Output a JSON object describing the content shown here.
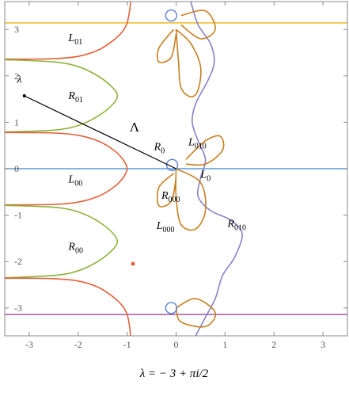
{
  "chart_data": {
    "type": "line",
    "xlim": [
      -3.5,
      3.5
    ],
    "ylim": [
      -3.6,
      3.6
    ],
    "xticks": [
      -3,
      -2,
      -1,
      0,
      1,
      2,
      3
    ],
    "yticks": [
      -3,
      -2,
      -1,
      0,
      1,
      2,
      3
    ],
    "caption": "λ = − 3 + πi/2",
    "series": [
      {
        "color": "#e8b820",
        "x": [
          -3.5,
          3.5
        ],
        "y": [
          3.14159,
          3.14159
        ]
      },
      {
        "color": "#5b9bd5",
        "x": [
          -3.5,
          3.5
        ],
        "y": [
          0,
          0
        ]
      },
      {
        "color": "#9b59a6",
        "x": [
          -3.5,
          3.5
        ],
        "y": [
          -3.14159,
          -3.14159
        ]
      },
      {
        "color": "#e4603a",
        "x": [
          -3.5,
          -3,
          -2.5,
          -2,
          -1.6,
          -1.3,
          -1.1,
          -1.0,
          -0.95,
          -0.93
        ],
        "y": [
          2.36,
          2.36,
          2.37,
          2.42,
          2.55,
          2.75,
          2.95,
          3.14,
          3.4,
          3.6
        ]
      },
      {
        "color": "#8fb23a",
        "x": [
          -3.5,
          -2.5,
          -2,
          -1.6,
          -1.3,
          -1.2,
          -1.3,
          -1.6,
          -2,
          -2.5,
          -3.5
        ],
        "y": [
          2.35,
          2.3,
          2.2,
          2.0,
          1.75,
          1.57,
          1.38,
          1.13,
          0.93,
          0.83,
          0.79
        ]
      },
      {
        "color": "#e4603a",
        "x": [
          -3.5,
          -2.5,
          -2,
          -1.6,
          -1.3,
          -1.1,
          -1.0,
          -1.1,
          -1.3,
          -1.6,
          -2,
          -2.5,
          -3.5
        ],
        "y": [
          0.78,
          0.77,
          0.72,
          0.6,
          0.42,
          0.22,
          0,
          -0.22,
          -0.42,
          -0.6,
          -0.72,
          -0.77,
          -0.78
        ]
      },
      {
        "color": "#8fb23a",
        "x": [
          -3.5,
          -2.5,
          -2,
          -1.6,
          -1.3,
          -1.2,
          -1.3,
          -1.6,
          -2,
          -2.5,
          -3.5
        ],
        "y": [
          -0.79,
          -0.83,
          -0.93,
          -1.13,
          -1.38,
          -1.57,
          -1.75,
          -2.0,
          -2.2,
          -2.3,
          -2.35
        ]
      },
      {
        "color": "#e4603a",
        "x": [
          -0.93,
          -0.95,
          -1.0,
          -1.1,
          -1.3,
          -1.6,
          -2,
          -2.5,
          -3,
          -3.5
        ],
        "y": [
          -3.6,
          -3.4,
          -3.14,
          -2.95,
          -2.75,
          -2.55,
          -2.42,
          -2.37,
          -2.36,
          -2.36
        ]
      },
      {
        "color": "#8a80c8",
        "x": [
          0.3,
          0.45,
          0.7,
          0.78,
          0.65,
          0.4,
          0.33,
          0.45,
          0.6,
          0.5,
          0.45,
          0.7,
          1.1,
          1.35,
          1.2,
          0.95,
          0.8,
          0.6,
          0.4
        ],
        "y": [
          3.6,
          3.1,
          2.7,
          2.3,
          1.9,
          1.4,
          1.0,
          0.6,
          0.2,
          -0.2,
          -0.6,
          -0.9,
          -1.1,
          -1.4,
          -1.9,
          -2.3,
          -2.8,
          -3.2,
          -3.6
        ]
      },
      {
        "color": "#c8801f",
        "x": [
          0.0,
          0.3,
          0.5,
          0.45,
          0.3,
          0.1,
          0.05,
          0.0
        ],
        "y": [
          3.0,
          2.7,
          2.2,
          1.7,
          1.55,
          1.75,
          2.3,
          3.0
        ]
      },
      {
        "color": "#c8801f",
        "x": [
          0.1,
          0.6,
          0.8,
          0.5,
          0.1
        ],
        "y": [
          3.3,
          3.4,
          3.0,
          2.8,
          3.1
        ]
      },
      {
        "color": "#c8801f",
        "x": [
          -0.05,
          -0.35,
          -0.35,
          -0.1,
          0.0
        ],
        "y": [
          3.0,
          2.6,
          2.3,
          2.4,
          2.9
        ]
      },
      {
        "color": "#c8801f",
        "x": [
          0.2,
          0.6,
          0.9,
          0.95,
          0.6,
          0.2
        ],
        "y": [
          0.2,
          0.6,
          0.7,
          0.4,
          0.1,
          0.1
        ]
      },
      {
        "color": "#c8801f",
        "x": [
          0.0,
          0.5,
          0.6,
          0.4,
          0.1,
          0.0,
          0.0
        ],
        "y": [
          0.0,
          -0.3,
          -0.9,
          -1.3,
          -1.2,
          -0.6,
          0.0
        ]
      },
      {
        "color": "#c8801f",
        "x": [
          -0.05,
          -0.35,
          -0.35,
          -0.1,
          0.0
        ],
        "y": [
          -0.1,
          -0.4,
          -0.8,
          -0.7,
          -0.2
        ]
      },
      {
        "color": "#c8801f",
        "x": [
          0.0,
          0.4,
          0.8,
          0.6,
          0.1,
          0.0
        ],
        "y": [
          -3.0,
          -2.8,
          -3.1,
          -3.4,
          -3.3,
          -3.0
        ]
      }
    ],
    "circles": {
      "color": "#5b7fd5",
      "x": [
        -0.1,
        -0.08,
        -0.1
      ],
      "y": [
        3.3,
        0.08,
        -3.0
      ]
    },
    "dot": {
      "color": "#e4603a",
      "x": -0.88,
      "y": -2.05
    },
    "lambda_point": {
      "x": -3.1,
      "y": 1.57
    },
    "annotations": [
      {
        "text": "L",
        "sub": "01"
      },
      {
        "text": "R",
        "sub": "01"
      },
      {
        "text": "Λ",
        "sub": ""
      },
      {
        "text": "R",
        "sub": "0"
      },
      {
        "text": "L",
        "sub": "010"
      },
      {
        "text": "L",
        "sub": "0"
      },
      {
        "text": "L",
        "sub": "00"
      },
      {
        "text": "R",
        "sub": "000"
      },
      {
        "text": "L",
        "sub": "000"
      },
      {
        "text": "R",
        "sub": "010"
      },
      {
        "text": "R",
        "sub": "00"
      },
      {
        "text": "λ",
        "sub": ""
      }
    ]
  }
}
